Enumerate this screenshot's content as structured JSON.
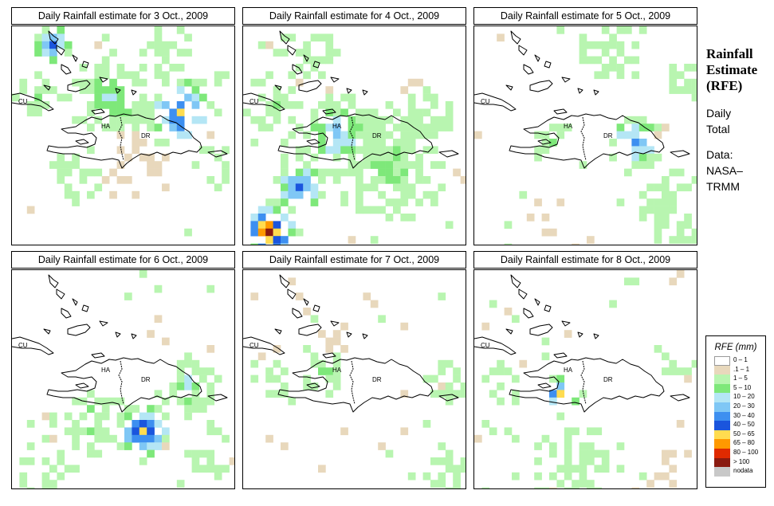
{
  "panels": [
    {
      "title": "Daily Rainfall estimate for  3 Oct., 2009",
      "day": "3 Oct., 2009"
    },
    {
      "title": "Daily Rainfall estimate for  4 Oct., 2009",
      "day": "4 Oct., 2009"
    },
    {
      "title": "Daily Rainfall estimate for  5 Oct., 2009",
      "day": "5 Oct., 2009"
    },
    {
      "title": "Daily Rainfall estimate for  6 Oct., 2009",
      "day": "6 Oct., 2009"
    },
    {
      "title": "Daily Rainfall estimate for  7 Oct., 2009",
      "day": "7 Oct., 2009"
    },
    {
      "title": "Daily Rainfall estimate for  8 Oct., 2009",
      "day": "8 Oct., 2009"
    }
  ],
  "region_labels": [
    "CU",
    "HA",
    "DR"
  ],
  "side": {
    "title_line1": "Rainfall",
    "title_line2": "Estimate",
    "title_line3": "(RFE)",
    "period_line1": "Daily",
    "period_line2": "Total",
    "data_line1": "Data:",
    "data_line2": "NASA–",
    "data_line3": "TRMM"
  },
  "legend": {
    "title": "RFE (mm)",
    "classes": [
      {
        "label": "0 – 1",
        "color": "#ffffff"
      },
      {
        "label": ".1 – 1",
        "color": "#e8d8bc"
      },
      {
        "label": "1 – 5",
        "color": "#b8f5b0"
      },
      {
        "label": "5 – 10",
        "color": "#7ee87a"
      },
      {
        "label": "10 – 20",
        "color": "#b4e6f5"
      },
      {
        "label": "20 – 30",
        "color": "#7fc7f5"
      },
      {
        "label": "30 – 40",
        "color": "#3d8ff0"
      },
      {
        "label": "40 – 50",
        "color": "#1a55dd"
      },
      {
        "label": "50 – 65",
        "color": "#ffdc50"
      },
      {
        "label": "65 – 80",
        "color": "#ff9900"
      },
      {
        "label": "80 – 100",
        "color": "#e02a00"
      },
      {
        "label": "> 100",
        "color": "#8a1a10"
      },
      {
        "label": "nodata",
        "color": "#c8c8c8"
      }
    ]
  }
}
